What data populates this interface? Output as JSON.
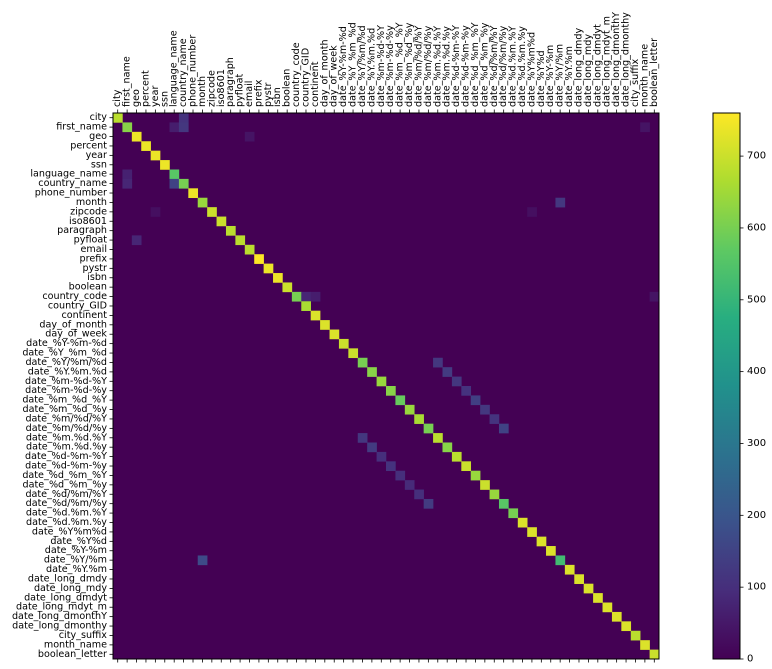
{
  "chart_data": {
    "type": "heatmap",
    "title": "",
    "xlabel": "",
    "ylabel": "",
    "labels": [
      "city",
      "first_name",
      "geo",
      "percent",
      "year",
      "ssn",
      "language_name",
      "country_name",
      "phone_number",
      "month",
      "zipcode",
      "iso8601",
      "paragraph",
      "pyfloat",
      "email",
      "prefix",
      "pystr",
      "isbn",
      "boolean",
      "country_code",
      "country_GID",
      "continent",
      "day_of_month",
      "day_of_week",
      "date_%Y-%m-%d",
      "date_%Y_%m_%d",
      "date_%Y/%m/%d",
      "date_%Y.%m.%d",
      "date_%m-%d-%Y",
      "date_%m-%d-%y",
      "date_%m_%d_%Y",
      "date_%m_%d_%y",
      "date_%m/%d/%Y",
      "date_%m/%d/%y",
      "date_%m.%d.%Y",
      "date_%m.%d.%y",
      "date_%d-%m-%Y",
      "date_%d-%m-%y",
      "date_%d_%m_%Y",
      "date_%d_%m_%y",
      "date_%d/%m/%Y",
      "date_%d/%m/%y",
      "date_%d.%m.%Y",
      "date_%d.%m.%y",
      "date_%Y%m%d",
      "date_%Y%d",
      "date_%Y-%m",
      "date_%Y/%m",
      "date_%Y.%m",
      "date_long_dmdy",
      "date_long_mdy",
      "date_long_dmdyt",
      "date_long_mdyt_m",
      "date_long_dmonthY",
      "date_long_dmonthy",
      "city_suffix",
      "month_name",
      "boolean_letter"
    ],
    "diagonal": [
      680,
      620,
      740,
      740,
      740,
      740,
      560,
      600,
      740,
      640,
      700,
      700,
      680,
      680,
      680,
      760,
      740,
      740,
      700,
      600,
      660,
      720,
      720,
      720,
      700,
      700,
      600,
      620,
      640,
      620,
      580,
      640,
      660,
      600,
      680,
      620,
      680,
      700,
      640,
      700,
      640,
      560,
      600,
      720,
      720,
      720,
      720,
      520,
      720,
      720,
      720,
      720,
      720,
      720,
      720,
      680,
      720,
      700
    ],
    "off_diagonal": [
      {
        "row": 0,
        "col": 7,
        "value": 110
      },
      {
        "row": 1,
        "col": 6,
        "value": 60
      },
      {
        "row": 1,
        "col": 7,
        "value": 120
      },
      {
        "row": 1,
        "col": 56,
        "value": 40
      },
      {
        "row": 2,
        "col": 14,
        "value": 40
      },
      {
        "row": 6,
        "col": 1,
        "value": 70
      },
      {
        "row": 7,
        "col": 1,
        "value": 80
      },
      {
        "row": 7,
        "col": 6,
        "value": 150
      },
      {
        "row": 9,
        "col": 47,
        "value": 120
      },
      {
        "row": 10,
        "col": 4,
        "value": 30
      },
      {
        "row": 10,
        "col": 44,
        "value": 30
      },
      {
        "row": 13,
        "col": 2,
        "value": 80
      },
      {
        "row": 19,
        "col": 20,
        "value": 80
      },
      {
        "row": 19,
        "col": 21,
        "value": 60
      },
      {
        "row": 19,
        "col": 57,
        "value": 40
      },
      {
        "row": 26,
        "col": 34,
        "value": 120
      },
      {
        "row": 27,
        "col": 35,
        "value": 130
      },
      {
        "row": 28,
        "col": 36,
        "value": 120
      },
      {
        "row": 29,
        "col": 37,
        "value": 110
      },
      {
        "row": 30,
        "col": 38,
        "value": 140
      },
      {
        "row": 31,
        "col": 39,
        "value": 120
      },
      {
        "row": 32,
        "col": 40,
        "value": 110
      },
      {
        "row": 33,
        "col": 41,
        "value": 150
      },
      {
        "row": 34,
        "col": 26,
        "value": 120
      },
      {
        "row": 35,
        "col": 27,
        "value": 130
      },
      {
        "row": 36,
        "col": 28,
        "value": 100
      },
      {
        "row": 37,
        "col": 29,
        "value": 110
      },
      {
        "row": 38,
        "col": 30,
        "value": 100
      },
      {
        "row": 39,
        "col": 31,
        "value": 90
      },
      {
        "row": 40,
        "col": 32,
        "value": 100
      },
      {
        "row": 41,
        "col": 33,
        "value": 130
      },
      {
        "row": 47,
        "col": 9,
        "value": 170
      }
    ],
    "colorbar": {
      "min": 0,
      "max": 760,
      "ticks": [
        0,
        100,
        200,
        300,
        400,
        500,
        600,
        700
      ],
      "colormap": "viridis"
    }
  }
}
